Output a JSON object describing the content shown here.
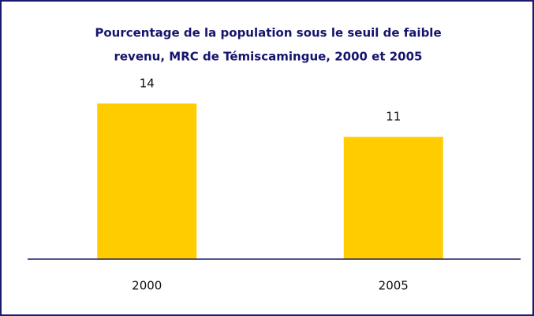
{
  "chart_data": {
    "type": "bar",
    "title": [
      "Pourcentage de la population sous le seuil de faible",
      "revenu, MRC de Témiscamingue, 2000 et 2005"
    ],
    "categories": [
      "2000",
      "2005"
    ],
    "values": [
      14,
      11
    ],
    "color": "#ffcc00"
  }
}
